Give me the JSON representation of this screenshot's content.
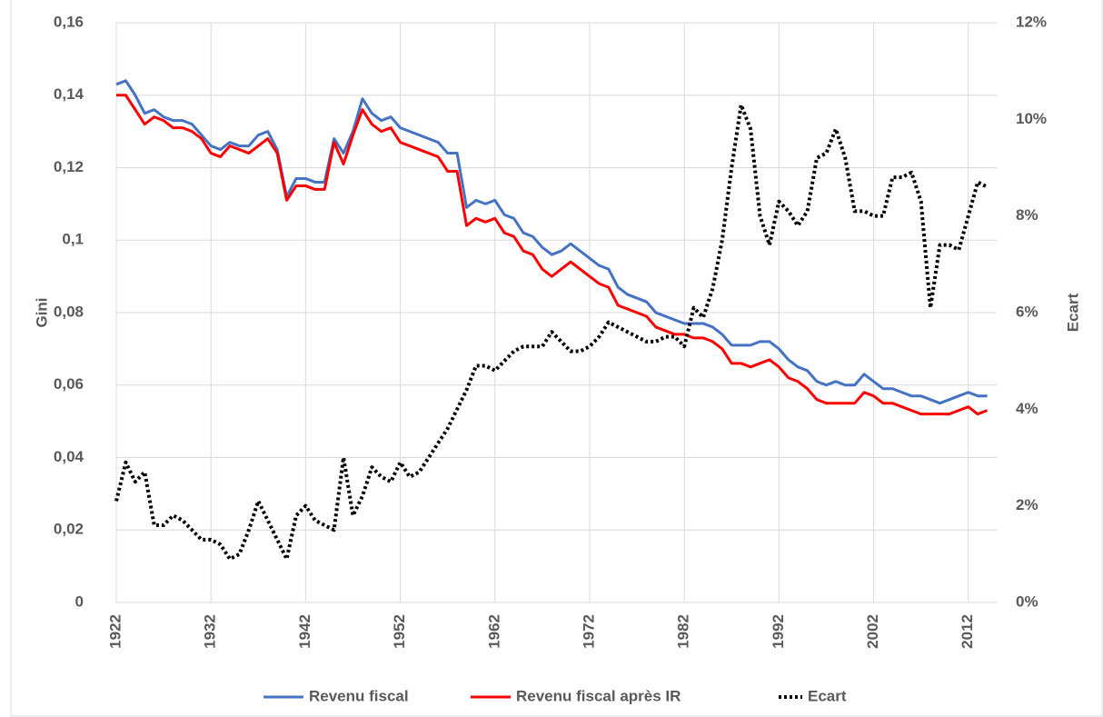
{
  "chart_data": {
    "type": "line",
    "x": [
      1922,
      1923,
      1924,
      1925,
      1926,
      1927,
      1928,
      1929,
      1930,
      1931,
      1932,
      1933,
      1934,
      1935,
      1936,
      1937,
      1938,
      1939,
      1940,
      1941,
      1942,
      1943,
      1944,
      1945,
      1946,
      1947,
      1948,
      1949,
      1950,
      1951,
      1952,
      1953,
      1954,
      1955,
      1956,
      1957,
      1958,
      1959,
      1960,
      1961,
      1962,
      1963,
      1964,
      1965,
      1966,
      1967,
      1968,
      1969,
      1970,
      1971,
      1972,
      1973,
      1974,
      1975,
      1976,
      1977,
      1978,
      1979,
      1980,
      1981,
      1982,
      1983,
      1984,
      1985,
      1986,
      1987,
      1988,
      1989,
      1990,
      1991,
      1992,
      1993,
      1994,
      1995,
      1996,
      1997,
      1998,
      1999,
      2000,
      2001,
      2002,
      2003,
      2004,
      2005,
      2006,
      2007,
      2008,
      2009,
      2010,
      2011,
      2012,
      2013,
      2014
    ],
    "series": [
      {
        "name": "Revenu fiscal",
        "color": "#4472c4",
        "style": "solid",
        "values": [
          0.143,
          0.144,
          0.14,
          0.135,
          0.136,
          0.134,
          0.133,
          0.133,
          0.132,
          0.129,
          0.126,
          0.125,
          0.127,
          0.126,
          0.126,
          0.129,
          0.13,
          0.125,
          0.112,
          0.117,
          0.117,
          0.116,
          0.116,
          0.128,
          0.124,
          0.13,
          0.139,
          0.135,
          0.133,
          0.134,
          0.131,
          0.13,
          0.129,
          0.128,
          0.127,
          0.124,
          0.124,
          0.109,
          0.111,
          0.11,
          0.111,
          0.107,
          0.106,
          0.102,
          0.101,
          0.098,
          0.096,
          0.097,
          0.099,
          0.097,
          0.095,
          0.093,
          0.092,
          0.087,
          0.085,
          0.084,
          0.083,
          0.08,
          0.079,
          0.078,
          0.077,
          0.077,
          0.077,
          0.076,
          0.074,
          0.071,
          0.071,
          0.071,
          0.072,
          0.072,
          0.07,
          0.067,
          0.065,
          0.064,
          0.061,
          0.06,
          0.061,
          0.06,
          0.06,
          0.063,
          0.061,
          0.059,
          0.059,
          0.058,
          0.057,
          0.057,
          0.056,
          0.055,
          0.056,
          0.057,
          0.058,
          0.057,
          0.057
        ]
      },
      {
        "name": "Revenu fiscal après IR",
        "color": "#ff0000",
        "style": "solid",
        "values": [
          0.14,
          0.14,
          0.136,
          0.132,
          0.134,
          0.133,
          0.131,
          0.131,
          0.13,
          0.128,
          0.124,
          0.123,
          0.126,
          0.125,
          0.124,
          0.126,
          0.128,
          0.124,
          0.111,
          0.115,
          0.115,
          0.114,
          0.114,
          0.127,
          0.121,
          0.129,
          0.136,
          0.132,
          0.13,
          0.131,
          0.127,
          0.126,
          0.125,
          0.124,
          0.123,
          0.119,
          0.119,
          0.104,
          0.106,
          0.105,
          0.106,
          0.102,
          0.101,
          0.097,
          0.096,
          0.092,
          0.09,
          0.092,
          0.094,
          0.092,
          0.09,
          0.088,
          0.087,
          0.082,
          0.081,
          0.08,
          0.079,
          0.076,
          0.075,
          0.074,
          0.074,
          0.073,
          0.073,
          0.072,
          0.07,
          0.066,
          0.066,
          0.065,
          0.066,
          0.067,
          0.065,
          0.062,
          0.061,
          0.059,
          0.056,
          0.055,
          0.055,
          0.055,
          0.055,
          0.058,
          0.057,
          0.055,
          0.055,
          0.054,
          0.053,
          0.052,
          0.052,
          0.052,
          0.052,
          0.053,
          0.054,
          0.052,
          0.053
        ]
      },
      {
        "name": "Ecart",
        "color": "#000000",
        "style": "dotted",
        "axis": "y2",
        "values": [
          2.1,
          2.9,
          2.5,
          2.7,
          1.6,
          1.6,
          1.8,
          1.7,
          1.5,
          1.3,
          1.3,
          1.2,
          0.9,
          1.0,
          1.5,
          2.1,
          1.7,
          1.3,
          0.9,
          1.8,
          2.0,
          1.7,
          1.6,
          1.5,
          3.0,
          1.8,
          2.2,
          2.8,
          2.6,
          2.5,
          2.9,
          2.6,
          2.7,
          3.0,
          3.3,
          3.6,
          4.0,
          4.4,
          4.9,
          4.9,
          4.8,
          5.0,
          5.2,
          5.3,
          5.3,
          5.3,
          5.6,
          5.4,
          5.2,
          5.2,
          5.3,
          5.5,
          5.8,
          5.7,
          5.6,
          5.5,
          5.4,
          5.4,
          5.5,
          5.5,
          5.3,
          6.1,
          5.9,
          6.5,
          7.5,
          9.0,
          10.3,
          9.8,
          8.0,
          7.4,
          8.3,
          8.1,
          7.8,
          8.1,
          9.2,
          9.3,
          9.8,
          9.2,
          8.1,
          8.1,
          8.0,
          8.0,
          8.8,
          8.8,
          8.9,
          8.3,
          6.1,
          7.4,
          7.4,
          7.3,
          8.0,
          8.7,
          8.6
        ]
      }
    ],
    "y_label": "Gini",
    "y2_label": "Ecart",
    "xlim": [
      1922,
      2015
    ],
    "xticks": [
      1922,
      1932,
      1942,
      1952,
      1962,
      1972,
      1982,
      1992,
      2002,
      2012
    ],
    "ylim": [
      0,
      0.16
    ],
    "yticks": [
      0,
      {
        "value": 0.02,
        "label": "0,02"
      },
      {
        "value": 0.04,
        "label": "0,04"
      },
      {
        "value": 0.06,
        "label": "0,06"
      },
      {
        "value": 0.08,
        "label": "0,08"
      },
      {
        "value": 0.1,
        "label": "0,1"
      },
      {
        "value": 0.12,
        "label": "0,12"
      },
      {
        "value": 0.14,
        "label": "0,14"
      },
      {
        "value": 0.16,
        "label": "0,16"
      }
    ],
    "y2lim": [
      0,
      12
    ],
    "y2ticks": [
      {
        "value": 0,
        "label": "0%"
      },
      {
        "value": 2,
        "label": "2%"
      },
      {
        "value": 4,
        "label": "4%"
      },
      {
        "value": 6,
        "label": "6%"
      },
      {
        "value": 8,
        "label": "8%"
      },
      {
        "value": 10,
        "label": "10%"
      },
      {
        "value": 12,
        "label": "12%"
      }
    ],
    "grid": true,
    "legend": "bottom"
  }
}
